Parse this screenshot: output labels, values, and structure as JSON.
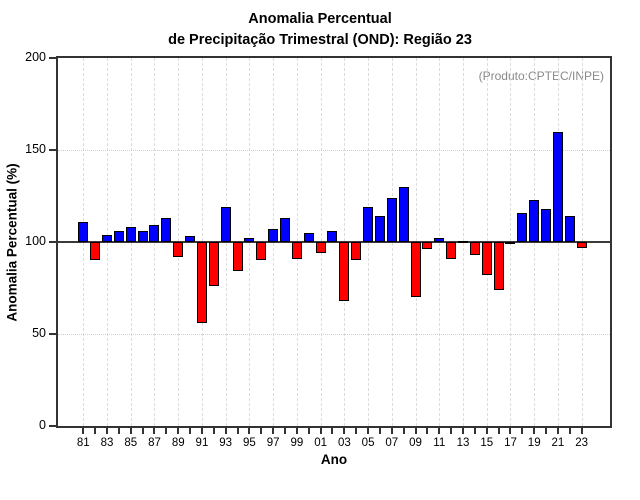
{
  "header": {
    "title_line1": "Anomalia Percentual",
    "title_line2": "de Precipitação Trimestral (OND): Região 23"
  },
  "annotation": "(Produto:CPTEC/INPE)",
  "chart_data": {
    "type": "bar",
    "title": "Anomalia Percentual de Precipitação Trimestral (OND): Região 23",
    "subtitle_annotation": "(Produto:CPTEC/INPE)",
    "xlabel": "Ano",
    "ylabel": "Anomalia Percentual (%)",
    "ylim": [
      0,
      200
    ],
    "yticks": [
      0,
      50,
      100,
      150,
      200
    ],
    "baseline": 100,
    "grid_dotted_horizontal_at": [
      50,
      150
    ],
    "grid_dashed_vertical_every_years": 2,
    "legend": "none",
    "colors": {
      "above_baseline": "#0000ff",
      "below_baseline": "#ff0000",
      "bar_outline": "#000000"
    },
    "categories": [
      1981,
      1982,
      1983,
      1984,
      1985,
      1986,
      1987,
      1988,
      1989,
      1990,
      1991,
      1992,
      1993,
      1994,
      1995,
      1996,
      1997,
      1998,
      1999,
      2000,
      2001,
      2002,
      2003,
      2004,
      2005,
      2006,
      2007,
      2008,
      2009,
      2010,
      2011,
      2012,
      2013,
      2014,
      2015,
      2016,
      2017,
      2018,
      2019,
      2020,
      2021,
      2022,
      2023
    ],
    "xtick_labels": [
      "81",
      "83",
      "85",
      "87",
      "89",
      "91",
      "93",
      "95",
      "97",
      "99",
      "01",
      "03",
      "05",
      "07",
      "09",
      "11",
      "13",
      "15",
      "17",
      "19",
      "21",
      "23"
    ],
    "values": [
      111,
      90,
      104,
      106,
      108,
      106,
      109,
      113,
      92,
      103,
      56,
      76,
      119,
      84,
      102,
      90,
      107,
      113,
      91,
      105,
      94,
      106,
      68,
      90,
      119,
      114,
      124,
      130,
      70,
      96,
      102,
      91,
      100,
      93,
      82,
      74,
      99,
      116,
      123,
      118,
      160,
      114,
      97
    ]
  }
}
